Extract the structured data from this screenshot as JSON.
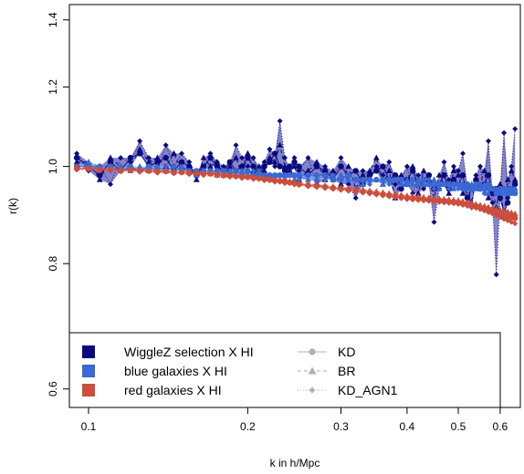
{
  "chart_data": {
    "type": "line",
    "xlabel": "k in h/Mpc",
    "ylabel": "r(k)",
    "xscale": "log",
    "yscale": "log",
    "xlim": [
      0.092,
      0.655
    ],
    "ylim": [
      0.575,
      1.45
    ],
    "x_ticks": [
      0.1,
      0.2,
      0.3,
      0.4,
      0.5,
      0.6
    ],
    "x_tick_labels": [
      "0.1",
      "0.2",
      "0.3",
      "0.4",
      "0.5",
      "0.6"
    ],
    "y_ticks": [
      0.6,
      0.8,
      1.0,
      1.2,
      1.4
    ],
    "y_tick_labels": [
      "0.6",
      "0.8",
      "1.0",
      "1.2",
      "1.4"
    ],
    "grid": false,
    "legend_placement": "bottom",
    "legend": {
      "series": [
        {
          "label": "WiggleZ selection X HI",
          "color": "#0a0a80"
        },
        {
          "label": "blue galaxies X HI",
          "color": "#3a68d4"
        },
        {
          "label": "red galaxies X HI",
          "color": "#cc4e3c"
        }
      ],
      "models": [
        {
          "label": "KD",
          "marker": "circle",
          "line": "solid"
        },
        {
          "label": "BR",
          "marker": "triangle",
          "line": "dashed"
        },
        {
          "label": "KD_AGN1",
          "marker": "diamond",
          "line": "dotted"
        }
      ]
    },
    "x": [
      0.095,
      0.1,
      0.105,
      0.11,
      0.115,
      0.12,
      0.125,
      0.13,
      0.135,
      0.14,
      0.145,
      0.15,
      0.155,
      0.16,
      0.165,
      0.17,
      0.175,
      0.18,
      0.185,
      0.19,
      0.195,
      0.2,
      0.205,
      0.21,
      0.215,
      0.22,
      0.225,
      0.23,
      0.235,
      0.24,
      0.245,
      0.25,
      0.26,
      0.27,
      0.28,
      0.29,
      0.3,
      0.31,
      0.32,
      0.33,
      0.34,
      0.35,
      0.36,
      0.37,
      0.38,
      0.39,
      0.4,
      0.41,
      0.42,
      0.43,
      0.44,
      0.45,
      0.46,
      0.47,
      0.48,
      0.49,
      0.5,
      0.51,
      0.52,
      0.53,
      0.54,
      0.55,
      0.56,
      0.57,
      0.58,
      0.59,
      0.6,
      0.61,
      0.62,
      0.63,
      0.64
    ],
    "series": [
      {
        "name": "WiggleZ selection X HI",
        "color": "#0a0a80",
        "band": "#6f6fc0",
        "KD": [
          1.02,
          1.0,
          0.98,
          1.01,
          0.99,
          1.02,
          1.03,
          1.0,
          1.01,
          1.02,
          0.99,
          1.01,
          1.0,
          0.98,
          1.0,
          1.02,
          1.0,
          0.99,
          1.01,
          0.99,
          1.0,
          1.02,
          1.0,
          0.98,
          1.0,
          1.01,
          1.03,
          1.0,
          0.99,
          1.0,
          1.01,
          1.0,
          0.98,
          1.0,
          0.99,
          0.97,
          1.0,
          0.98,
          0.99,
          0.96,
          0.98,
          0.99,
          1.0,
          0.97,
          0.98,
          0.95,
          0.97,
          0.99,
          0.96,
          0.97,
          0.98,
          0.95,
          0.96,
          0.98,
          0.95,
          0.97,
          0.96,
          0.98,
          0.93,
          0.95,
          0.97,
          0.95,
          0.96,
          0.98,
          0.94,
          0.95,
          0.93,
          0.9,
          0.92,
          0.95,
          0.96
        ],
        "BR": [
          1.01,
          1.01,
          0.97,
          1.02,
          1.0,
          1.0,
          1.04,
          1.01,
          1.02,
          1.0,
          1.03,
          0.99,
          1.0,
          0.97,
          1.02,
          1.0,
          1.01,
          0.98,
          1.0,
          1.02,
          0.98,
          1.03,
          0.99,
          1.0,
          0.99,
          1.02,
          1.01,
          1.05,
          1.0,
          0.99,
          1.0,
          0.97,
          0.99,
          1.01,
          0.97,
          0.99,
          0.96,
          1.0,
          0.95,
          0.98,
          0.99,
          1.02,
          0.96,
          0.99,
          0.93,
          0.98,
          0.96,
          1.0,
          0.94,
          0.99,
          0.97,
          0.93,
          0.98,
          0.96,
          0.94,
          0.99,
          0.98,
          0.94,
          0.96,
          0.92,
          0.97,
          0.96,
          0.99,
          0.93,
          0.95,
          0.91,
          0.96,
          0.89,
          0.97,
          0.99,
          0.97
        ],
        "KD_AGN1": [
          1.03,
          0.99,
          1.0,
          0.96,
          1.02,
          1.01,
          1.06,
          1.02,
          0.99,
          1.05,
          1.0,
          1.03,
          1.01,
          0.98,
          0.99,
          1.03,
          1.01,
          1.0,
          0.99,
          1.05,
          1.02,
          1.0,
          1.02,
          0.99,
          1.01,
          1.04,
          1.0,
          1.11,
          1.02,
          0.98,
          1.02,
          0.99,
          1.02,
          0.96,
          1.0,
          0.97,
          1.02,
          0.96,
          0.93,
          0.99,
          0.97,
          1.0,
          0.98,
          1.01,
          0.96,
          0.97,
          1.0,
          0.94,
          0.98,
          0.95,
          0.96,
          0.88,
          0.95,
          1.01,
          0.97,
          1.0,
          0.99,
          1.03,
          0.95,
          0.91,
          0.98,
          1.0,
          0.94,
          1.06,
          0.92,
          0.78,
          0.94,
          1.08,
          0.93,
          1.0,
          1.09
        ]
      },
      {
        "name": "blue galaxies X HI",
        "color": "#3a68d4",
        "band": "#8faee8",
        "KD": [
          1.0,
          1.0,
          1.0,
          1.0,
          0.99,
          1.0,
          0.99,
          1.0,
          0.99,
          0.99,
          1.0,
          0.99,
          0.99,
          0.99,
          0.99,
          0.99,
          0.99,
          0.99,
          0.98,
          0.99,
          0.98,
          0.99,
          0.98,
          0.98,
          0.98,
          0.98,
          0.98,
          0.98,
          0.98,
          0.98,
          0.98,
          0.98,
          0.98,
          0.98,
          0.98,
          0.97,
          0.97,
          0.98,
          0.97,
          0.97,
          0.97,
          0.97,
          0.97,
          0.97,
          0.97,
          0.97,
          0.96,
          0.97,
          0.96,
          0.97,
          0.96,
          0.96,
          0.96,
          0.96,
          0.96,
          0.96,
          0.96,
          0.95,
          0.96,
          0.95,
          0.96,
          0.95,
          0.95,
          0.96,
          0.95,
          0.94,
          0.95,
          0.95,
          0.94,
          0.95,
          0.94
        ],
        "BR": [
          1.0,
          1.01,
          1.0,
          1.0,
          1.0,
          0.99,
          1.0,
          0.99,
          1.0,
          0.99,
          0.99,
          1.0,
          0.99,
          0.98,
          0.99,
          0.99,
          0.98,
          0.99,
          0.99,
          0.98,
          0.99,
          0.98,
          0.98,
          0.99,
          0.98,
          0.98,
          0.97,
          0.98,
          0.98,
          0.98,
          0.97,
          0.98,
          0.97,
          0.97,
          0.98,
          0.97,
          0.98,
          0.97,
          0.97,
          0.96,
          0.97,
          0.97,
          0.96,
          0.97,
          0.97,
          0.96,
          0.97,
          0.96,
          0.97,
          0.96,
          0.96,
          0.97,
          0.95,
          0.96,
          0.96,
          0.95,
          0.96,
          0.96,
          0.95,
          0.96,
          0.95,
          0.95,
          0.96,
          0.94,
          0.95,
          0.95,
          0.94,
          0.95,
          0.94,
          0.94,
          0.95
        ],
        "KD_AGN1": [
          1.0,
          1.0,
          1.0,
          0.99,
          1.0,
          1.0,
          0.99,
          0.99,
          0.99,
          1.0,
          0.99,
          0.99,
          0.99,
          0.99,
          0.98,
          0.99,
          0.99,
          0.98,
          0.99,
          0.98,
          0.98,
          0.98,
          0.99,
          0.98,
          0.98,
          0.97,
          0.98,
          0.98,
          0.97,
          0.98,
          0.98,
          0.97,
          0.98,
          0.97,
          0.97,
          0.98,
          0.97,
          0.97,
          0.97,
          0.97,
          0.96,
          0.97,
          0.97,
          0.96,
          0.97,
          0.96,
          0.96,
          0.97,
          0.96,
          0.96,
          0.97,
          0.95,
          0.96,
          0.96,
          0.95,
          0.96,
          0.95,
          0.96,
          0.95,
          0.95,
          0.95,
          0.96,
          0.94,
          0.95,
          0.95,
          0.94,
          0.95,
          0.94,
          0.95,
          0.94,
          0.95
        ]
      },
      {
        "name": "red galaxies X HI",
        "color": "#cc4e3c",
        "band": "#eaa89c",
        "KD": [
          0.995,
          0.995,
          0.992,
          0.993,
          0.99,
          0.992,
          0.99,
          0.99,
          0.988,
          0.989,
          0.986,
          0.987,
          0.985,
          0.985,
          0.983,
          0.984,
          0.981,
          0.98,
          0.979,
          0.978,
          0.976,
          0.976,
          0.974,
          0.973,
          0.971,
          0.97,
          0.968,
          0.967,
          0.965,
          0.964,
          0.962,
          0.96,
          0.958,
          0.956,
          0.954,
          0.952,
          0.95,
          0.948,
          0.946,
          0.944,
          0.942,
          0.94,
          0.938,
          0.936,
          0.934,
          0.932,
          0.93,
          0.929,
          0.928,
          0.927,
          0.926,
          0.925,
          0.924,
          0.923,
          0.922,
          0.921,
          0.92,
          0.918,
          0.916,
          0.914,
          0.912,
          0.91,
          0.908,
          0.905,
          0.902,
          0.9,
          0.897,
          0.895,
          0.892,
          0.89,
          0.888
        ],
        "BR": [
          0.998,
          0.996,
          0.995,
          0.994,
          0.993,
          0.993,
          0.992,
          0.991,
          0.99,
          0.989,
          0.988,
          0.987,
          0.986,
          0.985,
          0.985,
          0.983,
          0.982,
          0.981,
          0.98,
          0.979,
          0.978,
          0.977,
          0.976,
          0.975,
          0.973,
          0.972,
          0.97,
          0.969,
          0.968,
          0.966,
          0.965,
          0.963,
          0.961,
          0.959,
          0.957,
          0.955,
          0.953,
          0.951,
          0.95,
          0.948,
          0.946,
          0.944,
          0.942,
          0.94,
          0.939,
          0.937,
          0.935,
          0.934,
          0.933,
          0.932,
          0.931,
          0.93,
          0.929,
          0.928,
          0.927,
          0.926,
          0.925,
          0.923,
          0.921,
          0.919,
          0.917,
          0.915,
          0.913,
          0.911,
          0.909,
          0.907,
          0.905,
          0.903,
          0.901,
          0.899,
          0.897
        ],
        "KD_AGN1": [
          0.992,
          0.993,
          0.99,
          0.991,
          0.988,
          0.99,
          0.987,
          0.988,
          0.985,
          0.987,
          0.984,
          0.985,
          0.982,
          0.983,
          0.98,
          0.982,
          0.979,
          0.978,
          0.976,
          0.976,
          0.973,
          0.974,
          0.971,
          0.971,
          0.968,
          0.968,
          0.965,
          0.965,
          0.962,
          0.962,
          0.959,
          0.958,
          0.955,
          0.953,
          0.951,
          0.949,
          0.947,
          0.945,
          0.943,
          0.941,
          0.939,
          0.937,
          0.935,
          0.933,
          0.931,
          0.929,
          0.927,
          0.926,
          0.925,
          0.924,
          0.923,
          0.922,
          0.921,
          0.92,
          0.919,
          0.918,
          0.917,
          0.915,
          0.913,
          0.911,
          0.909,
          0.906,
          0.903,
          0.9,
          0.897,
          0.893,
          0.89,
          0.886,
          0.883,
          0.88,
          0.877
        ]
      }
    ]
  }
}
